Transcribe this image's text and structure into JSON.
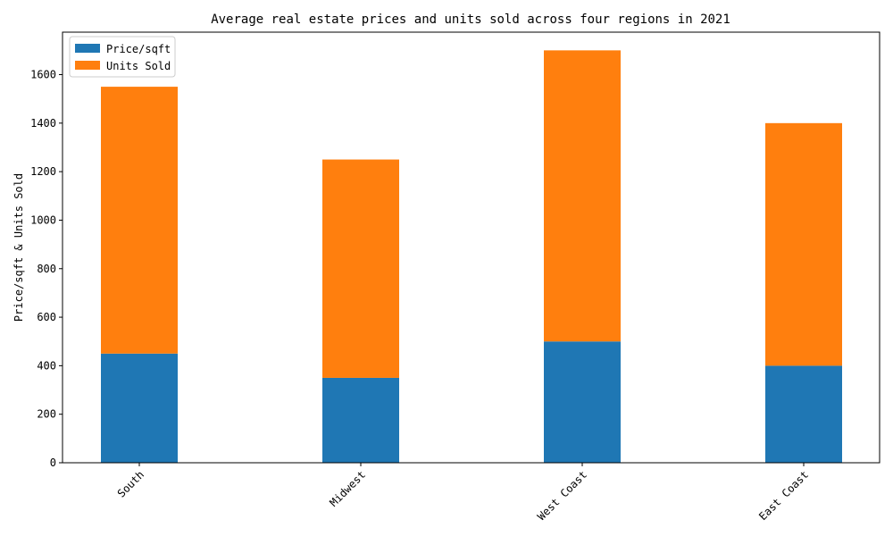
{
  "chart_data": {
    "type": "bar",
    "stacked": true,
    "title": "Average real estate prices and units sold across four regions in 2021",
    "xlabel": "",
    "ylabel": "Price/sqft & Units Sold",
    "categories": [
      "South",
      "Midwest",
      "West Coast",
      "East Coast"
    ],
    "series": [
      {
        "name": "Price/sqft",
        "values": [
          450,
          350,
          500,
          400
        ],
        "color": "#1f77b4"
      },
      {
        "name": "Units Sold",
        "values": [
          1100,
          900,
          1200,
          1000
        ],
        "color": "#ff7f0e"
      }
    ],
    "ylim": [
      0,
      1775
    ],
    "yticks": [
      0,
      200,
      400,
      600,
      800,
      1000,
      1200,
      1400,
      1600
    ],
    "legend_position": "top-left",
    "grid": false
  }
}
